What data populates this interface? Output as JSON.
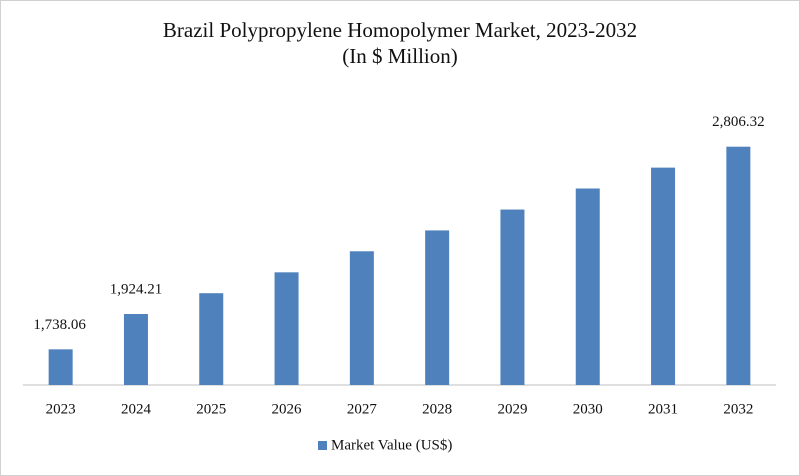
{
  "chart_data": {
    "type": "bar",
    "title": "Brazil Polypropylene Homopolymer Market, 2023-2032",
    "subtitle": "(In $ Million)",
    "categories": [
      "2023",
      "2024",
      "2025",
      "2026",
      "2027",
      "2028",
      "2029",
      "2030",
      "2031",
      "2032"
    ],
    "series": [
      {
        "name": "Market Value (US$)",
        "color": "#4f81bd",
        "values": [
          1738.06,
          1924.21,
          2034,
          2144,
          2255,
          2365,
          2475,
          2586,
          2696,
          2806.32
        ],
        "value_labels": [
          "1,738.06",
          "1,924.21",
          null,
          null,
          null,
          null,
          null,
          null,
          null,
          "2,806.32"
        ]
      }
    ],
    "ylim": [
      1550,
      3100
    ],
    "legend": "bottom"
  }
}
